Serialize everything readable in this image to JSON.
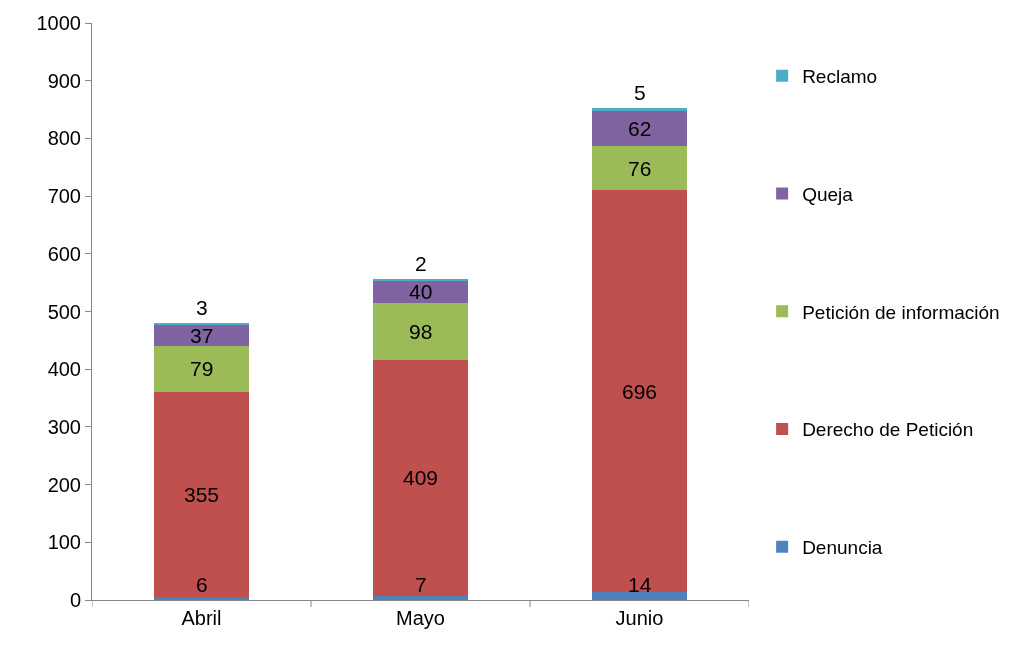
{
  "chart_data": {
    "type": "bar",
    "stacked": true,
    "categories": [
      "Abril",
      "Mayo",
      "Junio"
    ],
    "series": [
      {
        "name": "Denuncia",
        "color": "#4f81bd",
        "values": [
          6,
          7,
          14
        ]
      },
      {
        "name": "Derecho de Petición",
        "color": "#c0504d",
        "values": [
          355,
          409,
          696
        ]
      },
      {
        "name": "Petición de información",
        "color": "#9bbb59",
        "values": [
          79,
          98,
          76
        ]
      },
      {
        "name": "Queja",
        "color": "#8064a2",
        "values": [
          37,
          40,
          62
        ]
      },
      {
        "name": "Reclamo",
        "color": "#4bacc6",
        "values": [
          3,
          2,
          5
        ]
      }
    ],
    "ylim": [
      0,
      1000
    ],
    "yticks": [
      0,
      100,
      200,
      300,
      400,
      500,
      600,
      700,
      800,
      900,
      1000
    ],
    "legend": "right",
    "data_labels": true
  }
}
